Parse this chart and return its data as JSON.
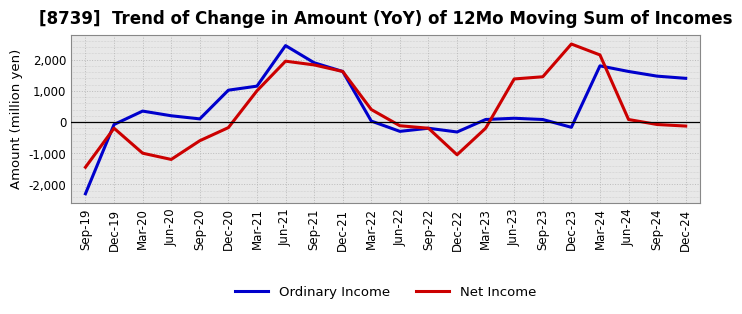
{
  "title": "[8739]  Trend of Change in Amount (YoY) of 12Mo Moving Sum of Incomes",
  "ylabel": "Amount (million yen)",
  "x_labels": [
    "Sep-19",
    "Dec-19",
    "Mar-20",
    "Jun-20",
    "Sep-20",
    "Dec-20",
    "Mar-21",
    "Jun-21",
    "Sep-21",
    "Dec-21",
    "Mar-22",
    "Jun-22",
    "Sep-22",
    "Dec-22",
    "Mar-23",
    "Jun-23",
    "Sep-23",
    "Dec-23",
    "Mar-24",
    "Jun-24",
    "Sep-24",
    "Dec-24"
  ],
  "ordinary_income": [
    -2300,
    -80,
    350,
    200,
    100,
    1020,
    1150,
    2450,
    1900,
    1620,
    30,
    -300,
    -200,
    -320,
    80,
    120,
    80,
    -170,
    1800,
    1620,
    1470,
    1400
  ],
  "net_income": [
    -1450,
    -200,
    -1000,
    -1200,
    -600,
    -180,
    1000,
    1950,
    1830,
    1620,
    400,
    -120,
    -200,
    -1050,
    -200,
    1380,
    1450,
    2500,
    2150,
    80,
    -80,
    -130
  ],
  "ordinary_income_color": "#0000cc",
  "net_income_color": "#cc0000",
  "background_color": "#ffffff",
  "plot_bg_color": "#e8e8e8",
  "grid_color": "#bbbbbb",
  "ylim": [
    -2600,
    2800
  ],
  "yticks": [
    -2000,
    -1000,
    0,
    1000,
    2000
  ],
  "legend_labels": [
    "Ordinary Income",
    "Net Income"
  ],
  "line_width": 2.2,
  "title_fontsize": 12,
  "axis_fontsize": 9.5,
  "tick_fontsize": 8.5
}
